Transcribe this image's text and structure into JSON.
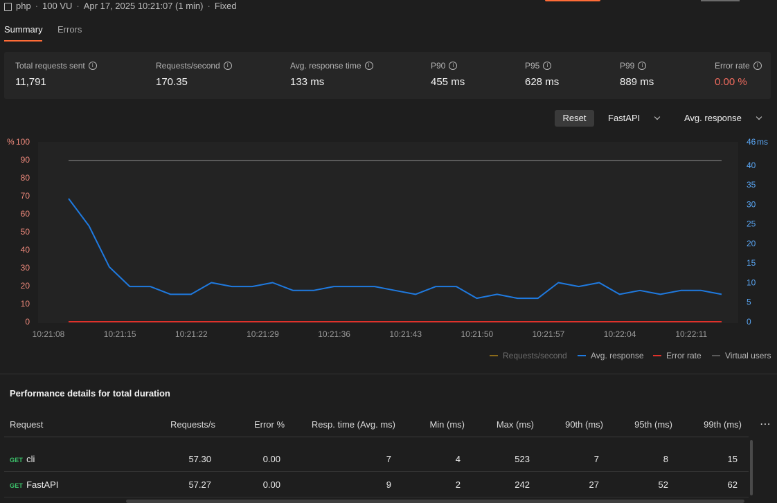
{
  "header": {
    "project": "php",
    "vus": "100 VU",
    "run_time": "Apr 17, 2025 10:21:07 (1 min)",
    "load_profile": "Fixed"
  },
  "tabs": [
    {
      "label": "Summary",
      "active": true
    },
    {
      "label": "Errors",
      "active": false
    }
  ],
  "stats": [
    {
      "label": "Total requests sent",
      "value": "11,791"
    },
    {
      "label": "Requests/second",
      "value": "170.35"
    },
    {
      "label": "Avg. response time",
      "value": "133 ms"
    },
    {
      "label": "P90",
      "value": "455 ms"
    },
    {
      "label": "P95",
      "value": "628 ms"
    },
    {
      "label": "P99",
      "value": "889 ms"
    },
    {
      "label": "Error rate",
      "value": "0.00 %"
    }
  ],
  "controls": {
    "reset_label": "Reset",
    "request_filter": "FastAPI",
    "metric_select": "Avg. response"
  },
  "chart_data": {
    "type": "line",
    "left_axis": {
      "label": "%",
      "ticks": [
        "0",
        "10",
        "20",
        "30",
        "40",
        "50",
        "60",
        "70",
        "80",
        "90",
        "100"
      ],
      "range": [
        0,
        100
      ]
    },
    "right_axis": {
      "label": "ms",
      "ticks": [
        "0",
        "5",
        "10",
        "15",
        "20",
        "25",
        "30",
        "35",
        "40",
        "46"
      ],
      "range": [
        0,
        46
      ]
    },
    "x_ticks": [
      "10:21:08",
      "10:21:15",
      "10:21:22",
      "10:21:29",
      "10:21:36",
      "10:21:43",
      "10:21:50",
      "10:21:57",
      "10:22:04",
      "10:22:11"
    ],
    "x_start_seconds": 0,
    "x_tick_step_seconds": 7,
    "grid": false,
    "legend_placement": "bottom-right",
    "series": [
      {
        "name": "Requests/second",
        "color": "#8a6a1a",
        "hidden": true,
        "values": []
      },
      {
        "name": "Avg. response",
        "color": "#1f7ae0",
        "axis": "right",
        "x": [
          0,
          2,
          4,
          6,
          8,
          10,
          12,
          14,
          16,
          18,
          20,
          22,
          24,
          26,
          28,
          30,
          32,
          34,
          36,
          38,
          40,
          42,
          44,
          46,
          48,
          50,
          52,
          54,
          56,
          58,
          60,
          62,
          64
        ],
        "values": [
          31.5,
          24.5,
          14,
          9,
          9,
          7,
          7,
          10,
          9,
          9,
          10,
          8,
          8,
          9,
          9,
          9,
          8,
          7,
          9,
          9,
          6,
          7,
          6,
          6,
          10,
          9,
          10,
          7,
          8,
          7,
          8,
          8,
          7
        ]
      },
      {
        "name": "Error rate",
        "color": "#e0312a",
        "axis": "left",
        "x": [
          0,
          64
        ],
        "values": [
          0,
          0
        ]
      },
      {
        "name": "Virtual users",
        "color": "#5a5a5a",
        "axis": "left",
        "x": [
          0,
          64
        ],
        "values": [
          89.6,
          89.6
        ]
      }
    ]
  },
  "details": {
    "title": "Performance details for total duration",
    "columns": [
      "Request",
      "Requests/s",
      "Error %",
      "Resp. time (Avg. ms)",
      "Min (ms)",
      "Max (ms)",
      "90th (ms)",
      "95th (ms)",
      "99th (ms)"
    ],
    "rows": [
      {
        "method": "GET",
        "name": "cli",
        "rps": "57.30",
        "err": "0.00",
        "avg": "7",
        "min": "4",
        "max": "523",
        "p90": "7",
        "p95": "8",
        "p99": "15"
      },
      {
        "method": "GET",
        "name": "FastAPI",
        "rps": "57.27",
        "err": "0.00",
        "avg": "9",
        "min": "2",
        "max": "242",
        "p90": "27",
        "p95": "52",
        "p99": "62"
      }
    ]
  }
}
